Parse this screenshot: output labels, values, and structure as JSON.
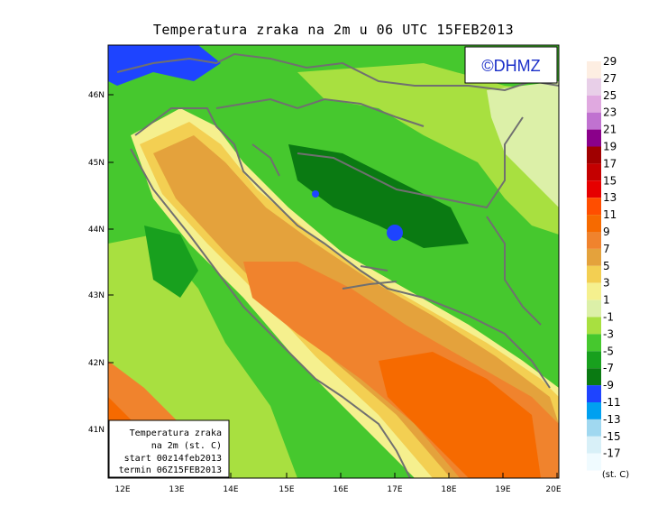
{
  "title": "Temperatura zraka na 2m u 06 UTC 15FEB2013",
  "logo": "©DHMZ",
  "info_box": [
    "Temperatura zraka",
    "na 2m (st. C)",
    "start 00z14feb2013",
    "termin 06Z15FEB2013"
  ],
  "lat_labels": [
    "46N",
    "45N",
    "44N",
    "43N",
    "42N",
    "41N"
  ],
  "lon_labels": [
    "12E",
    "13E",
    "14E",
    "15E",
    "16E",
    "17E",
    "18E",
    "19E",
    "20E"
  ],
  "unit": "(st. C)",
  "legend": [
    {
      "label": "29",
      "color": "#fdeee2"
    },
    {
      "label": "27",
      "color": "#e8cfe8"
    },
    {
      "label": "25",
      "color": "#e0a9e0"
    },
    {
      "label": "23",
      "color": "#c072d0"
    },
    {
      "label": "21",
      "color": "#8a008a"
    },
    {
      "label": "19",
      "color": "#a00000"
    },
    {
      "label": "17",
      "color": "#c40000"
    },
    {
      "label": "15",
      "color": "#e60000"
    },
    {
      "label": "13",
      "color": "#ff4e00"
    },
    {
      "label": "11",
      "color": "#f66a00"
    },
    {
      "label": "9",
      "color": "#f0832d"
    },
    {
      "label": "7",
      "color": "#e4a23c"
    },
    {
      "label": "5",
      "color": "#f3cf52"
    },
    {
      "label": "3",
      "color": "#f5f08e"
    },
    {
      "label": "1",
      "color": "#dcf0a8"
    },
    {
      "label": "-1",
      "color": "#a8e040"
    },
    {
      "label": "-3",
      "color": "#46c82e"
    },
    {
      "label": "-5",
      "color": "#18a01e"
    },
    {
      "label": "-7",
      "color": "#0a7a12"
    },
    {
      "label": "-9",
      "color": "#1e44ff"
    },
    {
      "label": "-11",
      "color": "#00a0f0"
    },
    {
      "label": "-13",
      "color": "#a0d8f0"
    },
    {
      "label": "-15",
      "color": "#d8f0f8"
    },
    {
      "label": "-17",
      "color": "#f0fbff"
    }
  ]
}
